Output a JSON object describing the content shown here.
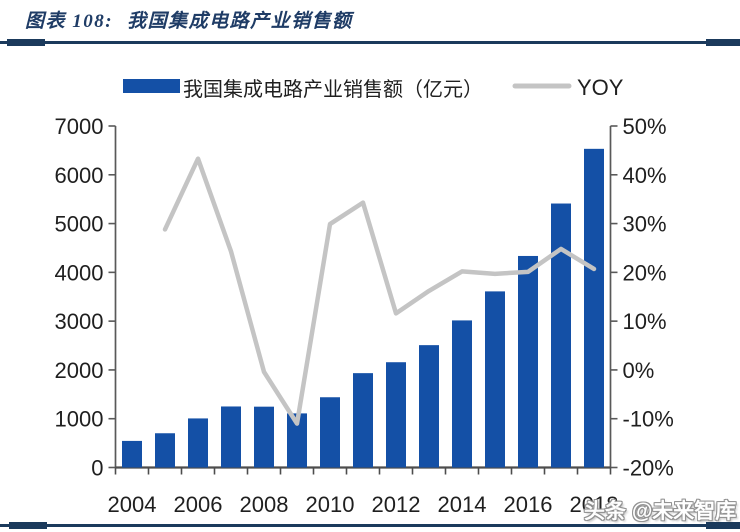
{
  "header": {
    "prefix": "图表 108:",
    "title": "我国集成电路产业销售额"
  },
  "legend": {
    "bars_label": "我国集成电路产业销售额（亿元）",
    "line_label": "YOY"
  },
  "watermark": "头条 @未来智库",
  "colors": {
    "bar": "#1450a6",
    "yoy_line": "#c4c4c4",
    "title": "#1f3c66",
    "rule": "#1b3a5c",
    "axis": "#595959",
    "label": "#1f1f1f",
    "watermark_fill": "#ffffff"
  },
  "chart_data": {
    "type": "bar",
    "subtype": "bar+line combo, dual axis",
    "title": "我国集成电路产业销售额",
    "categories": [
      2004,
      2005,
      2006,
      2007,
      2008,
      2009,
      2010,
      2011,
      2012,
      2013,
      2014,
      2015,
      2016,
      2017,
      2018
    ],
    "series": [
      {
        "name": "我国集成电路产业销售额（亿元）",
        "type": "bar",
        "axis": "left",
        "values": [
          545,
          702,
          1006,
          1251,
          1247,
          1109,
          1440,
          1934,
          2158,
          2508,
          3015,
          3610,
          4336,
          5411,
          6532
        ]
      },
      {
        "name": "YOY",
        "type": "line",
        "axis": "right",
        "unit": "%",
        "values": [
          null,
          28.8,
          43.3,
          24.3,
          -0.4,
          -11.0,
          29.9,
          34.3,
          11.6,
          16.2,
          20.2,
          19.7,
          20.1,
          24.8,
          20.7
        ]
      }
    ],
    "left_axis": {
      "min": 0,
      "max": 7000,
      "step": 1000
    },
    "right_axis": {
      "min": -20,
      "max": 50,
      "step": 10,
      "suffix": "%"
    },
    "x_tick_labels": [
      "2004",
      "2006",
      "2008",
      "2010",
      "2012",
      "2014",
      "2016",
      "2018"
    ],
    "grid": false,
    "legend_position": "top-center"
  }
}
